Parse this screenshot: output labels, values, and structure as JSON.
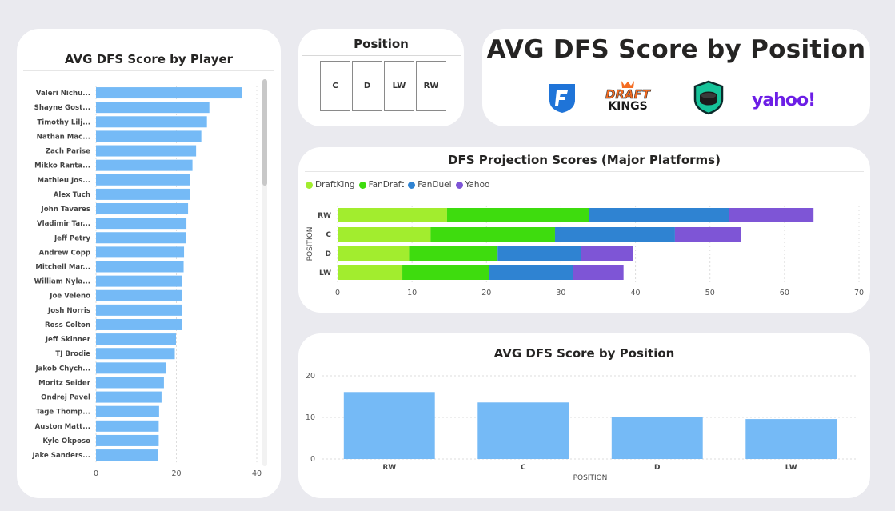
{
  "player_card": {
    "title": "AVG DFS Score by Player"
  },
  "slicer": {
    "title": "Position",
    "options": [
      "C",
      "D",
      "LW",
      "RW"
    ]
  },
  "header": {
    "title": "AVG DFS Score by Position",
    "logos": [
      "fanduel-logo",
      "draftkings-logo",
      "fandraft-logo",
      "yahoo-logo"
    ],
    "draftkings_text": [
      "DRAFT",
      "KINGS"
    ],
    "yahoo_text": "yahoo!"
  },
  "projection_card": {
    "title": "DFS Projection Scores (Major Platforms)"
  },
  "position_card": {
    "title": "AVG DFS Score by Position"
  },
  "colors": {
    "bar_blue": "#75baf6",
    "draftking": "#a2ed2e",
    "fandraft": "#3edc0e",
    "fanduel": "#2f83d2",
    "yahoo": "#7e55d6",
    "fanduel_logo": "#1f74d8",
    "yahoo_logo": "#6c1ee6"
  },
  "chart_data": [
    {
      "type": "bar",
      "orientation": "horizontal",
      "title": "AVG DFS Score by Player",
      "categories": [
        "Valeri Nichu...",
        "Shayne Gost...",
        "Timothy Lilj...",
        "Nathan Mac...",
        "Zach Parise",
        "Mikko Ranta...",
        "Mathieu Jos...",
        "Alex Tuch",
        "John Tavares",
        "Vladimir Tar...",
        "Jeff Petry",
        "Andrew Copp",
        "Mitchell Mar...",
        "William Nyla...",
        "Joe Veleno",
        "Josh Norris",
        "Ross Colton",
        "Jeff Skinner",
        "TJ Brodie",
        "Jakob Chych...",
        "Moritz Seider",
        "Ondrej Pavel",
        "Tage Thomp...",
        "Auston Matt...",
        "Kyle Okposo",
        "Jake Sanders..."
      ],
      "values": [
        36.3,
        28.2,
        27.6,
        26.2,
        24.9,
        24.0,
        23.4,
        23.3,
        22.9,
        22.5,
        22.4,
        21.9,
        21.8,
        21.4,
        21.4,
        21.4,
        21.3,
        19.9,
        19.6,
        17.5,
        16.9,
        16.3,
        15.7,
        15.6,
        15.6,
        15.4
      ],
      "xlim": [
        0,
        40
      ],
      "xticks": [
        0,
        20,
        40
      ],
      "grid": true
    },
    {
      "type": "bar",
      "orientation": "horizontal",
      "stacked": true,
      "title": "DFS Projection Scores (Major Platforms)",
      "categories": [
        "RW",
        "C",
        "D",
        "LW"
      ],
      "series": [
        {
          "name": "DraftKing",
          "values": [
            14.7,
            12.5,
            9.6,
            8.7
          ]
        },
        {
          "name": "FanDraft",
          "values": [
            19.1,
            16.7,
            11.9,
            11.7
          ]
        },
        {
          "name": "FanDuel",
          "values": [
            18.8,
            16.1,
            11.2,
            11.2
          ]
        },
        {
          "name": "Yahoo",
          "values": [
            11.3,
            8.9,
            7.0,
            6.8
          ]
        }
      ],
      "ylabel": "POSITION",
      "xlim": [
        0,
        70
      ],
      "xticks": [
        0,
        10,
        20,
        30,
        40,
        50,
        60,
        70
      ],
      "legend": "top-left",
      "grid": true
    },
    {
      "type": "bar",
      "title": "AVG DFS Score by Position",
      "categories": [
        "RW",
        "C",
        "D",
        "LW"
      ],
      "values": [
        16.1,
        13.6,
        10.0,
        9.6
      ],
      "xlabel": "POSITION",
      "ylim": [
        0,
        20
      ],
      "yticks": [
        0,
        10,
        20
      ],
      "grid": true
    }
  ]
}
